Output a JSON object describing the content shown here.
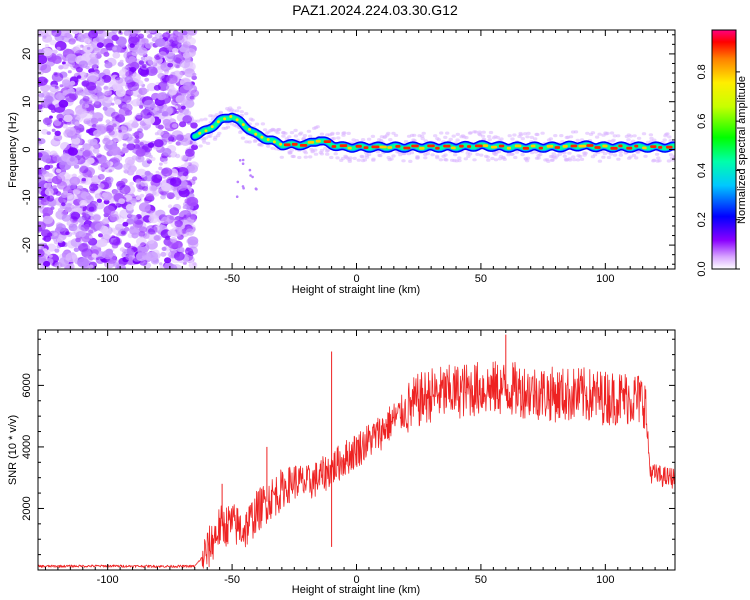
{
  "title": "PAZ1.2024.224.03.30.G12",
  "chart_data": [
    {
      "type": "heatmap",
      "xlabel": "Height of straight line (km)",
      "ylabel": "Frequency (Hz)",
      "xlim": [
        -128,
        128
      ],
      "ylim": [
        -25,
        25
      ],
      "xticks": [
        -100,
        -50,
        0,
        50,
        100
      ],
      "yticks": [
        -20,
        -10,
        0,
        10,
        20
      ],
      "noise_region_x": [
        -128,
        -65
      ],
      "signal_track": {
        "x": [
          -65,
          -60,
          -55,
          -50,
          -45,
          -40,
          -35,
          -30,
          -25,
          -20,
          -15,
          -10,
          -5,
          0,
          10,
          20,
          30,
          40,
          50,
          60,
          70,
          80,
          90,
          100,
          110,
          120,
          128
        ],
        "y": [
          3,
          4,
          6,
          7,
          5,
          3,
          2,
          1,
          1,
          1,
          2,
          1,
          0.5,
          0.5,
          0.5,
          0.5,
          0.5,
          0.5,
          0.8,
          0.5,
          0.5,
          0.5,
          0.8,
          0.5,
          0.5,
          0.5,
          0.5
        ]
      },
      "colorbar": {
        "label": "Normalized spectral amplitude",
        "ticks": [
          "0.0",
          "0.2",
          "0.4",
          "0.6",
          "0.8"
        ],
        "range": [
          0,
          0.97
        ]
      },
      "grid": false
    },
    {
      "type": "line",
      "xlabel": "Height of straight line (km)",
      "ylabel": "SNR (10 * v/v)",
      "xlim": [
        -128,
        128
      ],
      "ylim": [
        0,
        7800
      ],
      "xticks": [
        -100,
        -50,
        0,
        50,
        100
      ],
      "yticks": [
        2000,
        4000,
        6000
      ],
      "series": [
        {
          "color": "#ee2222",
          "x": [
            -128,
            -100,
            -80,
            -65,
            -60,
            -55,
            -50,
            -45,
            -40,
            -35,
            -30,
            -25,
            -20,
            -15,
            -10,
            -5,
            0,
            5,
            10,
            15,
            20,
            25,
            30,
            40,
            50,
            60,
            70,
            80,
            90,
            100,
            110,
            116,
            118,
            120,
            125,
            128
          ],
          "y": [
            120,
            130,
            120,
            120,
            600,
            1400,
            1500,
            1300,
            1900,
            2300,
            2600,
            2900,
            2800,
            3000,
            3300,
            3600,
            3900,
            4200,
            4500,
            4900,
            5200,
            5500,
            5700,
            5800,
            5900,
            5900,
            5800,
            5700,
            5700,
            5600,
            5600,
            5500,
            3200,
            3100,
            3000,
            3000
          ],
          "spikes": [
            {
              "x": -10,
              "y": 7100
            },
            {
              "x": -10,
              "y": 750
            },
            {
              "x": -36,
              "y": 4000
            },
            {
              "x": -54,
              "y": 2800
            },
            {
              "x": 60,
              "y": 7650
            }
          ]
        }
      ],
      "grid": false
    }
  ]
}
